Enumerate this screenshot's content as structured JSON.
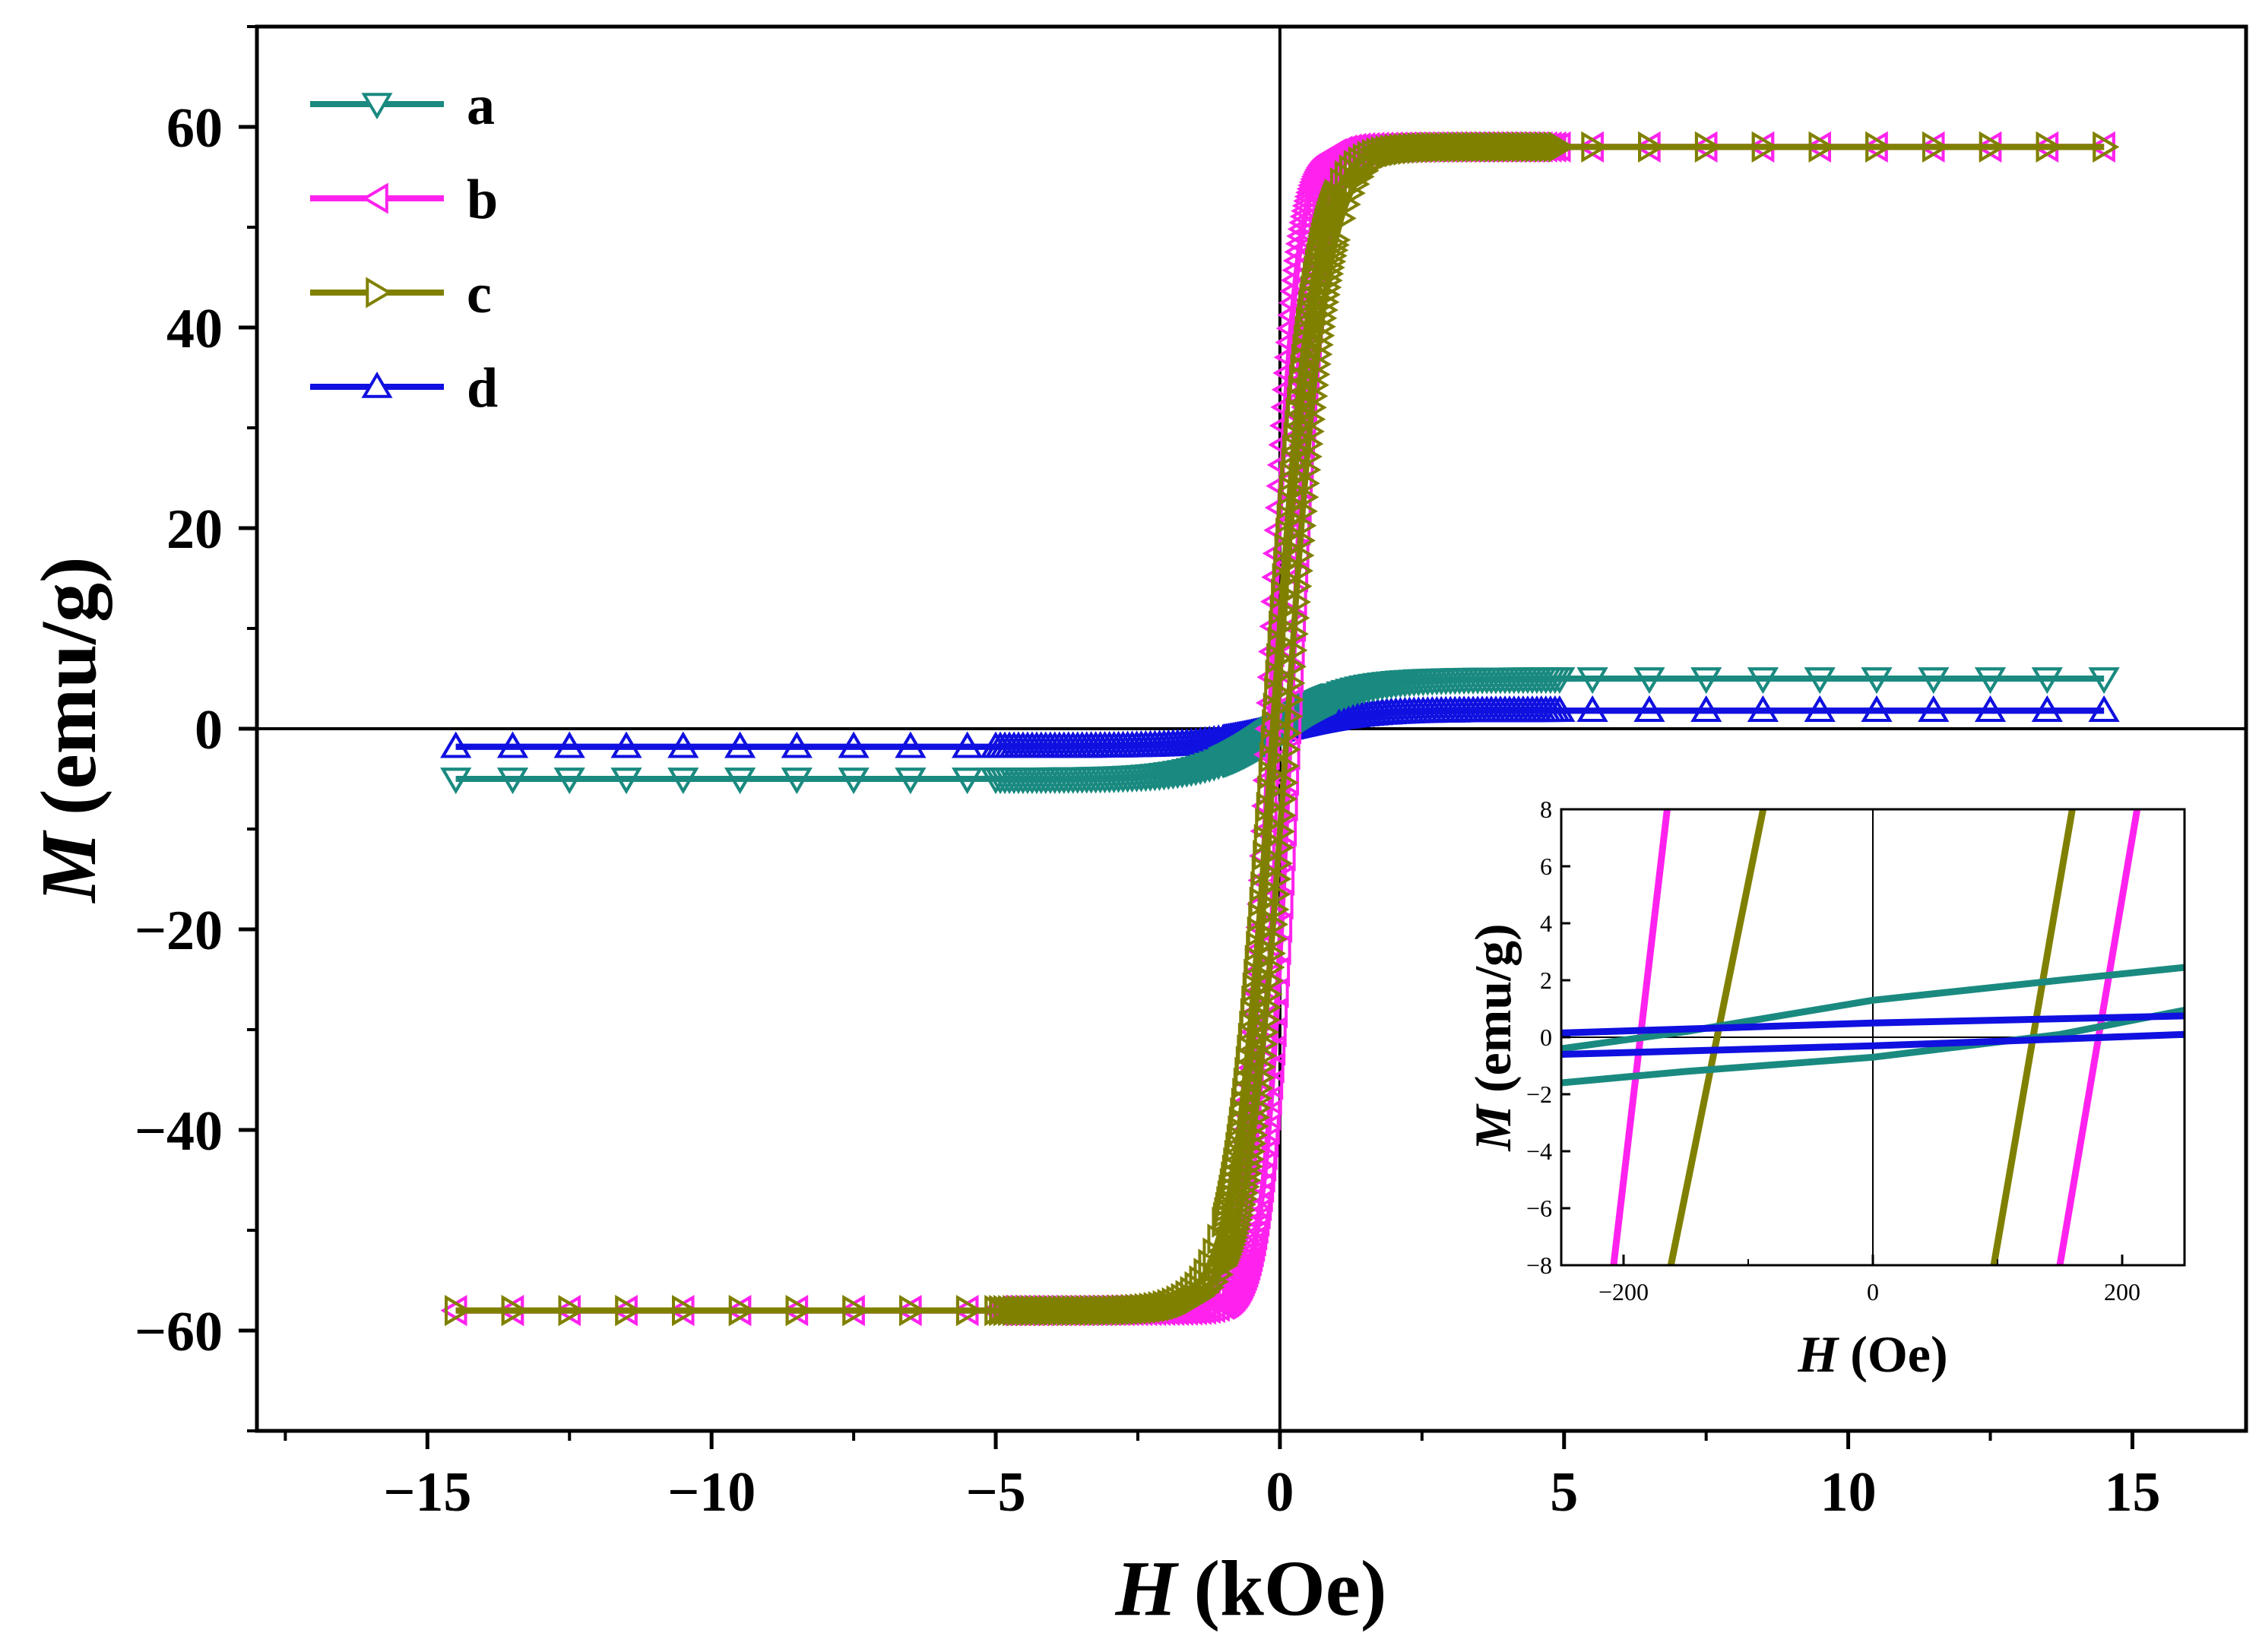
{
  "chart_data": [
    {
      "id": "main",
      "type": "line",
      "title": "",
      "xlabel": "H (kOe)",
      "xlabel_symbol": "H",
      "xlabel_unit": "(kOe)",
      "ylabel": "M (emu/g)",
      "ylabel_symbol": "M",
      "ylabel_unit": "(emu/g)",
      "xlim": [
        -18,
        17
      ],
      "ylim": [
        -70,
        70
      ],
      "xticks": [
        -15,
        -10,
        -5,
        0,
        5,
        10,
        15
      ],
      "xtick_labels": [
        "−15",
        "−10",
        "−5",
        "0",
        "5",
        "10",
        "15"
      ],
      "yticks": [
        -60,
        -40,
        -20,
        0,
        20,
        40,
        60
      ],
      "ytick_labels": [
        "−60",
        "−40",
        "−20",
        "0",
        "20",
        "40",
        "60"
      ],
      "grid": false,
      "legend_position": "top-left",
      "series": [
        {
          "name": "a",
          "color": "#1a8a80",
          "marker": "triangle-down",
          "Ms": 5.0,
          "Hc": 0.1,
          "Hk": 1.3,
          "Mr": 1.0
        },
        {
          "name": "b",
          "color": "#ff22ee",
          "marker": "triangle-left",
          "Ms": 58.0,
          "Hc": 0.18,
          "Hk": 0.45,
          "Mr": 42.0
        },
        {
          "name": "c",
          "color": "#808000",
          "marker": "triangle-right",
          "Ms": 58.0,
          "Hc": 0.125,
          "Hk": 0.7,
          "Mr": 38.0
        },
        {
          "name": "d",
          "color": "#1010e0",
          "marker": "triangle-up",
          "Ms": 1.8,
          "Hc": 0.1,
          "Hk": 1.4,
          "Mr": 0.4
        }
      ]
    },
    {
      "id": "inset",
      "type": "line",
      "title": "",
      "xlabel": "H (Oe)",
      "xlabel_symbol": "H",
      "xlabel_unit": "(Oe)",
      "ylabel": "M (emu/g)",
      "ylabel_symbol": "M",
      "ylabel_unit": "(emu/g)",
      "xlim": [
        -250,
        250
      ],
      "ylim": [
        -8,
        8
      ],
      "xticks": [
        -200,
        0,
        200
      ],
      "xtick_labels": [
        "−200",
        "0",
        "200"
      ],
      "yticks": [
        -8,
        -6,
        -4,
        -2,
        0,
        2,
        4,
        6,
        8
      ],
      "ytick_labels": [
        "−8",
        "−6",
        "−4",
        "−2",
        "0",
        "2",
        "4",
        "6",
        "8"
      ],
      "grid": false,
      "series": [
        {
          "name": "b",
          "color": "#ff22ee",
          "upper": [
            [
              -208,
              -8
            ],
            [
              -165,
              8
            ]
          ],
          "lower": [
            [
              150,
              -8
            ],
            [
              212,
              8
            ]
          ]
        },
        {
          "name": "c",
          "color": "#808000",
          "upper": [
            [
              -162,
              -8
            ],
            [
              -88,
              8
            ]
          ],
          "lower": [
            [
              97,
              -8
            ],
            [
              160,
              8
            ]
          ]
        },
        {
          "name": "a",
          "color": "#1a8a80",
          "upper": [
            [
              -250,
              -0.4
            ],
            [
              -150,
              0.2
            ],
            [
              0,
              1.3
            ],
            [
              150,
              2.0
            ],
            [
              250,
              2.45
            ]
          ],
          "lower": [
            [
              -250,
              -1.6
            ],
            [
              -150,
              -1.2
            ],
            [
              0,
              -0.7
            ],
            [
              150,
              0.1
            ],
            [
              250,
              0.95
            ]
          ]
        },
        {
          "name": "d",
          "color": "#1010e0",
          "upper": [
            [
              -250,
              0.15
            ],
            [
              0,
              0.5
            ],
            [
              250,
              0.75
            ]
          ],
          "lower": [
            [
              -250,
              -0.6
            ],
            [
              0,
              -0.3
            ],
            [
              250,
              0.1
            ]
          ]
        }
      ]
    }
  ]
}
